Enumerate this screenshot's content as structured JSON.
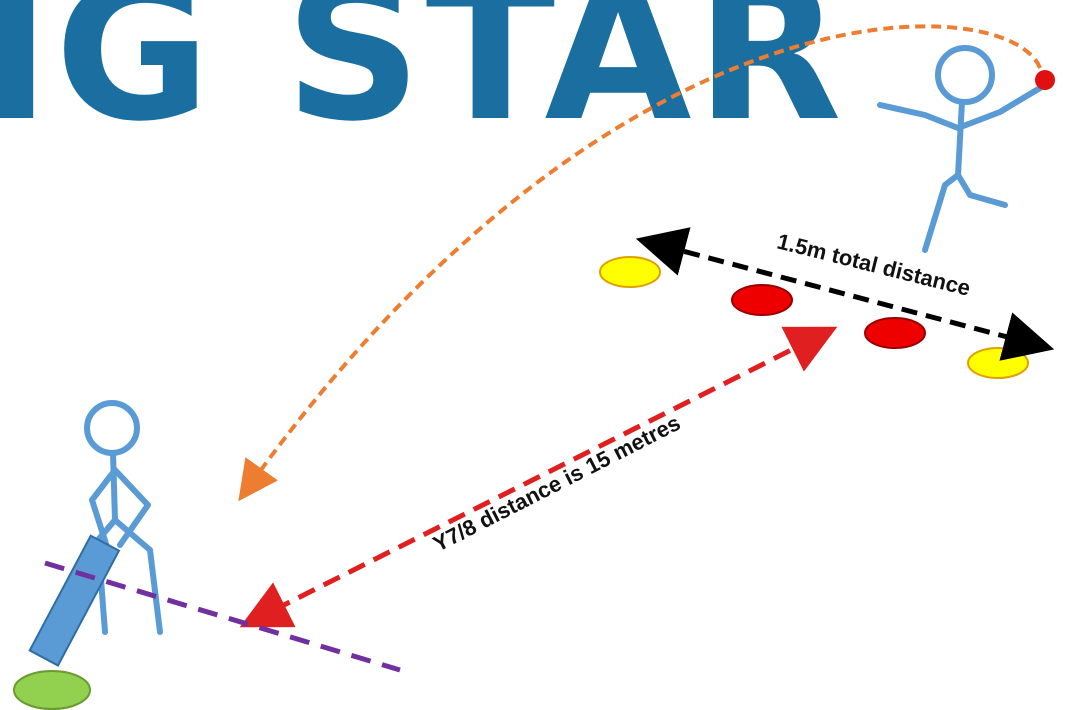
{
  "title": "IG STAR",
  "annotations": [
    "1.5m total distance",
    "Y7/8 distance is 15 metres"
  ]
}
